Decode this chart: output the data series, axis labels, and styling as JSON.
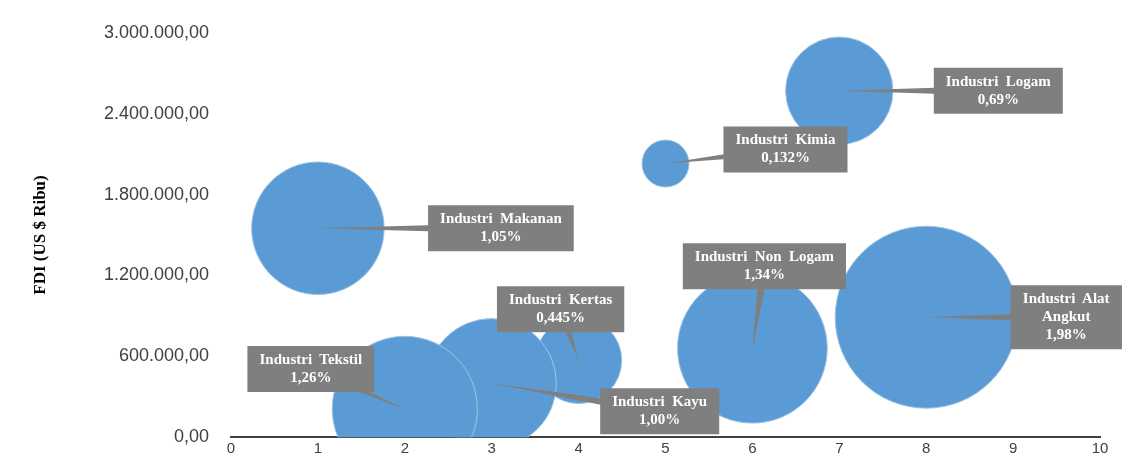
{
  "chart_data": {
    "type": "bubble",
    "ylabel": "FDI (US $ Ribu)",
    "xlim": [
      0,
      10
    ],
    "xticks": [
      0,
      1,
      2,
      3,
      4,
      5,
      6,
      7,
      8,
      9,
      10
    ],
    "ylim": [
      0,
      3000000
    ],
    "yticks": [
      {
        "value": 0,
        "label": "0,00"
      },
      {
        "value": 600000,
        "label": "600.000,00"
      },
      {
        "value": 1200000,
        "label": "1.200.000,00"
      },
      {
        "value": 1800000,
        "label": "1.800.000,00"
      },
      {
        "value": 2400000,
        "label": "2.400.000,00"
      },
      {
        "value": 3000000,
        "label": "3.000.000,00"
      }
    ],
    "legend": false,
    "grid": false,
    "annotations": [
      {
        "text": "1,26%",
        "x": 2,
        "y": 210000
      },
      {
        "text": "1,05%",
        "x": 1,
        "y": 1550000
      },
      {
        "text": "1,00%",
        "x": 3,
        "y": 400000
      },
      {
        "text": "0,445%",
        "x": 4,
        "y": 570000
      },
      {
        "text": "0,132%",
        "x": 5,
        "y": 2030000
      },
      {
        "text": "1,34%",
        "x": 6,
        "y": 660000
      },
      {
        "text": "0,69%",
        "x": 7,
        "y": 2570000
      },
      {
        "text": "1,98%",
        "x": 8,
        "y": 890000
      }
    ],
    "series": [
      {
        "name": "Industri Tekstil",
        "color": "#5b9bd5",
        "x": [
          2
        ],
        "values": [
          210000
        ],
        "sizes": [
          0.636
        ]
      },
      {
        "name": "Industri Makanan",
        "color": "#5b9bd5",
        "x": [
          1
        ],
        "values": [
          1550000
        ],
        "sizes": [
          0.53
        ]
      },
      {
        "name": "Industri Kayu",
        "color": "#5b9bd5",
        "x": [
          3
        ],
        "values": [
          400000
        ],
        "sizes": [
          0.505
        ]
      },
      {
        "name": "Industri Kertas",
        "color": "#5b9bd5",
        "x": [
          4
        ],
        "values": [
          570000
        ],
        "sizes": [
          0.225
        ]
      },
      {
        "name": "Industri Kimia",
        "color": "#5b9bd5",
        "x": [
          5
        ],
        "values": [
          2030000
        ],
        "sizes": [
          0.0667
        ]
      },
      {
        "name": "Industri Non Logam",
        "color": "#5b9bd5",
        "x": [
          6
        ],
        "values": [
          660000
        ],
        "sizes": [
          0.677
        ]
      },
      {
        "name": "Industri Logam",
        "color": "#5b9bd5",
        "x": [
          7
        ],
        "values": [
          2570000
        ],
        "sizes": [
          0.348
        ]
      },
      {
        "name": "Industri Alat Angkut",
        "color": "#5b9bd5",
        "x": [
          8
        ],
        "values": [
          890000
        ],
        "sizes": [
          1
        ]
      }
    ]
  }
}
